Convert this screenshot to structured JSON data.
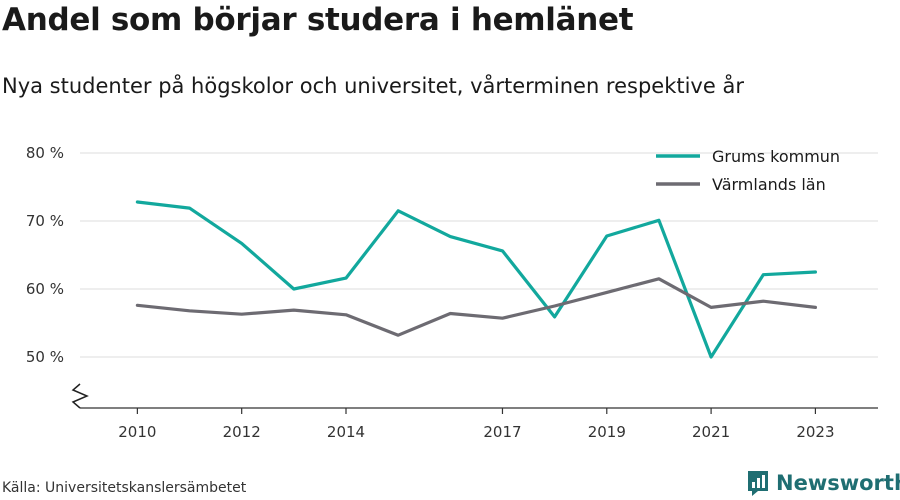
{
  "header": {
    "title": "Andel som börjar studera i hemlänet",
    "subtitle": "Nya studenter på högskolor och universitet, vårterminen respektive år"
  },
  "footer": {
    "source": "Källa: Universitetskanslersämbetet",
    "brand": "Newsworthy",
    "brand_icon": "bar-chart-logo-icon"
  },
  "colors": {
    "grums": "#12a89d",
    "varmland": "#6d6b72",
    "grid": "#dddddd",
    "axis": "#333333",
    "brand": "#1f6e72"
  },
  "chart_data": {
    "type": "line",
    "x": [
      2010,
      2011,
      2012,
      2013,
      2014,
      2015,
      2016,
      2017,
      2018,
      2019,
      2020,
      2021,
      2022,
      2023
    ],
    "x_ticks": [
      2010,
      2012,
      2014,
      2017,
      2019,
      2021,
      2023
    ],
    "x_tick_labels": [
      "2010",
      "2012",
      "2014",
      "2017",
      "2019",
      "2021",
      "2023"
    ],
    "y_ticks": [
      50,
      60,
      70,
      80
    ],
    "y_tick_labels": [
      "50 %",
      "60 %",
      "70 %",
      "80 %"
    ],
    "ylim": [
      42.5,
      80
    ],
    "y_axis_break": true,
    "grid": true,
    "legend_position": "top-right",
    "series": [
      {
        "name": "Grums kommun",
        "color": "#12a89d",
        "values": [
          72.8,
          71.9,
          66.7,
          60.0,
          61.6,
          71.5,
          67.7,
          65.6,
          55.9,
          67.8,
          70.1,
          50.0,
          62.1,
          62.5
        ]
      },
      {
        "name": "Värmlands län",
        "color": "#6d6b72",
        "values": [
          57.6,
          56.8,
          56.3,
          56.9,
          56.2,
          53.2,
          56.4,
          55.7,
          57.5,
          59.5,
          61.5,
          57.3,
          58.2,
          57.3
        ]
      }
    ]
  }
}
